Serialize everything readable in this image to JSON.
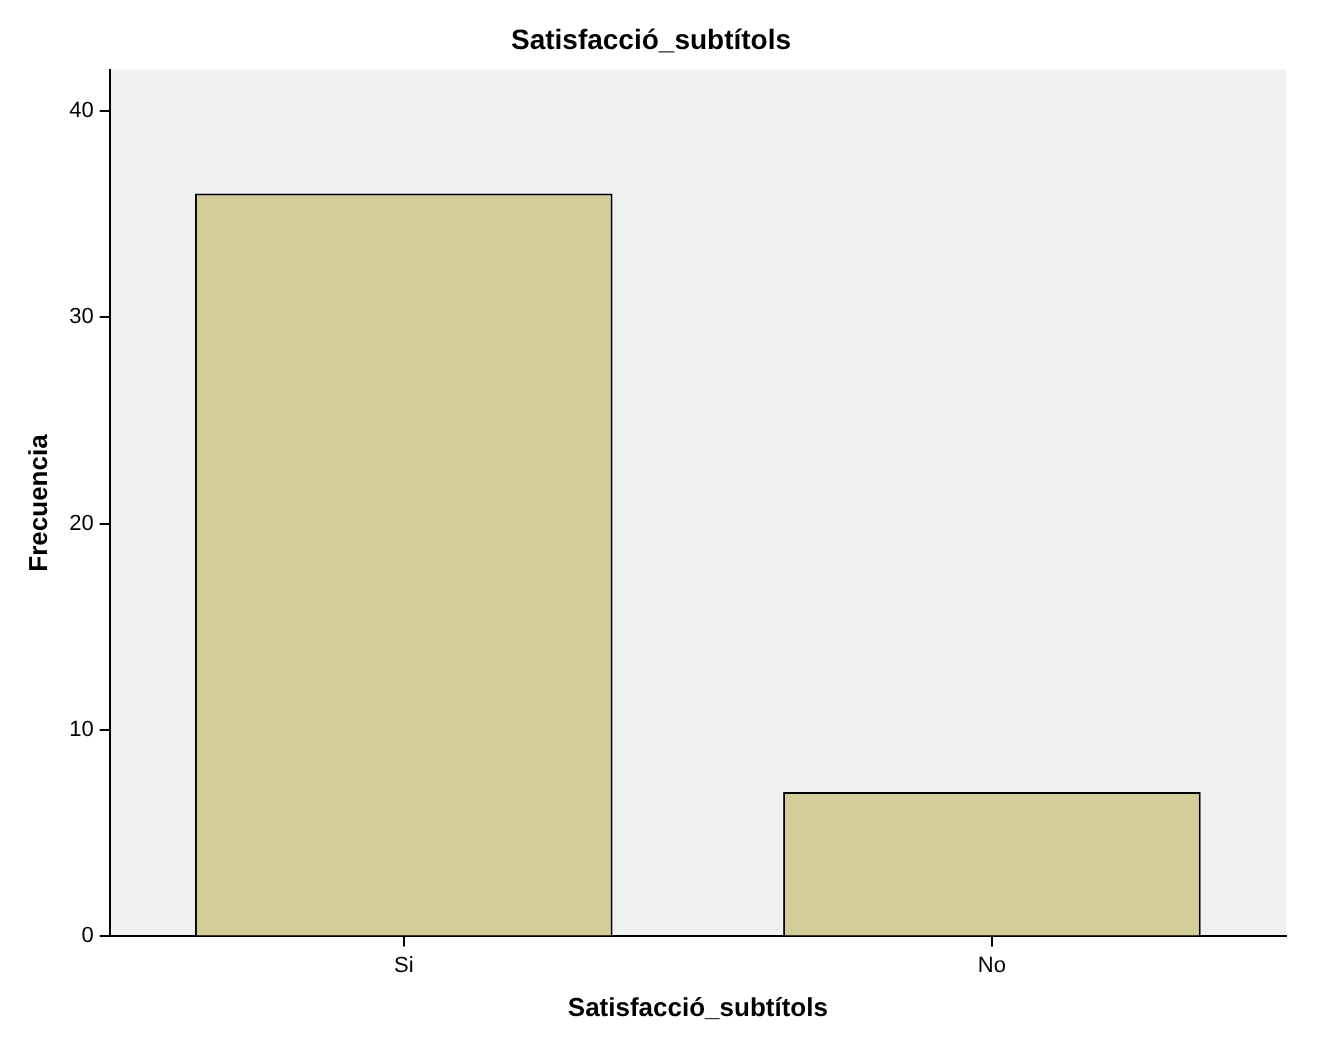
{
  "chart_data": {
    "type": "bar",
    "title": "Satisfacció_subtítols",
    "xlabel": "Satisfacció_subtítols",
    "ylabel": "Frecuencia",
    "categories": [
      "Si",
      "No"
    ],
    "series": [
      {
        "color": "#d3ce97",
        "values": [
          36,
          7
        ]
      }
    ],
    "ylim": [
      0,
      42
    ],
    "yticks": [
      0,
      10,
      20,
      30,
      40
    ],
    "grid": false,
    "legend": false
  }
}
